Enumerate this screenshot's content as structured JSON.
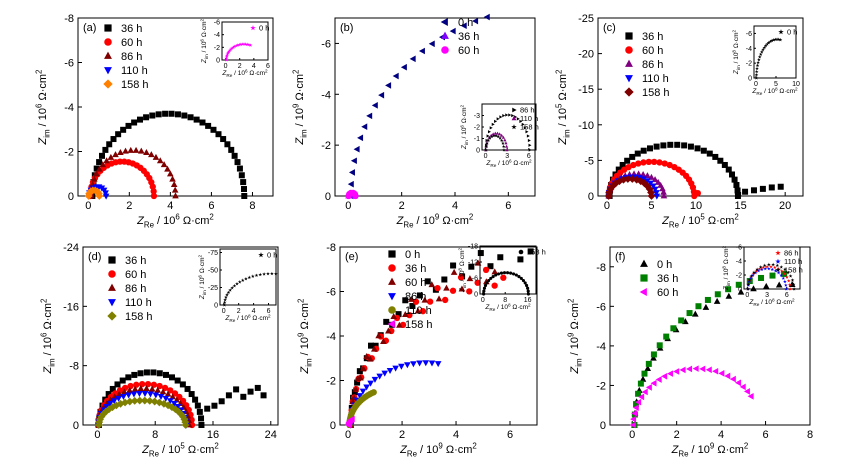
{
  "figure": {
    "panel_labels": [
      "(a)",
      "(b)",
      "(c)",
      "(d)",
      "(e)",
      "(f)"
    ]
  },
  "chart_data": [
    {
      "panel": "(a)",
      "type": "scatter",
      "xlim": [
        -0.5,
        9
      ],
      "ylim": [
        0,
        -8
      ],
      "xticks": [
        "0",
        "2",
        "4",
        "6",
        "8"
      ],
      "xtick_values": [
        0,
        2,
        4,
        6,
        8
      ],
      "yticks": [
        "0",
        "-2",
        "-4",
        "-6",
        "-8"
      ],
      "ytick_values": [
        0,
        -2,
        -4,
        -6,
        -8
      ],
      "x_sym": "Z",
      "x_sub": "Re",
      "x_unit": " / 10",
      "x_exp": "6",
      "x_unit2": " Ω·cm",
      "x_pow": "2",
      "y_sym": "Z",
      "y_sub": "im",
      "y_unit": " / 10",
      "y_exp": "6",
      "y_unit2": " Ω·cm",
      "y_pow": "2",
      "legend": "top-left",
      "series": [
        {
          "name": "36 h",
          "color": "#000000",
          "marker": "square",
          "shape": {
            "c": 3.9,
            "r": 3.7,
            "n": 38
          }
        },
        {
          "name": "60 h",
          "color": "#ff0000",
          "marker": "circle",
          "shape": {
            "c": 1.65,
            "r": 1.55,
            "n": 24
          }
        },
        {
          "name": "86 h",
          "color": "#800000",
          "marker": "triangle-up",
          "shape": {
            "c": 2.2,
            "r": 2.05,
            "n": 26
          }
        },
        {
          "name": "110 h",
          "color": "#0000ff",
          "marker": "triangle-down",
          "shape": {
            "c": 0.45,
            "r": 0.42,
            "n": 10
          }
        },
        {
          "name": "158 h",
          "color": "#ff8000",
          "marker": "diamond",
          "shape": {
            "c": 0.28,
            "r": 0.26,
            "n": 8
          }
        }
      ],
      "inset": {
        "xlim": [
          -0.5,
          6
        ],
        "ylim": [
          0,
          -6
        ],
        "xticks": [
          "0",
          "2",
          "4",
          "6"
        ],
        "xtick_values": [
          0,
          2,
          4,
          6
        ],
        "yticks": [
          "0",
          "-2",
          "-4",
          "-6"
        ],
        "ytick_values": [
          0,
          -2,
          -4,
          -6
        ],
        "x_sym": "Z",
        "x_sub": "Re",
        "x_unit": " / 10",
        "x_exp": "6",
        "x_unit2": " Ω·cm",
        "x_pow": "2",
        "y_sym": "Z",
        "y_sub": "im",
        "y_unit": " / 10",
        "y_exp": "6",
        "y_unit2": " Ω·cm",
        "y_pow": "2",
        "series": [
          {
            "name": "0 h",
            "color": "#ff00ff",
            "marker": "star",
            "shape": {
              "c": 2.6,
              "r": 2.5,
              "n": 22,
              "end": 0.62
            }
          }
        ]
      }
    },
    {
      "panel": "(b)",
      "type": "scatter",
      "xlim": [
        -0.5,
        7
      ],
      "ylim": [
        0,
        -7
      ],
      "xticks": [
        "0",
        "2",
        "4",
        "6"
      ],
      "xtick_values": [
        0,
        2,
        4,
        6
      ],
      "yticks": [
        "0",
        "-2",
        "-4",
        "-6"
      ],
      "ytick_values": [
        0,
        -2,
        -4,
        -6
      ],
      "x_sym": "Z",
      "x_sub": "Re",
      "x_unit": " / 10",
      "x_exp": "9",
      "x_unit2": " Ω·cm",
      "x_pow": "2",
      "y_sym": "Z",
      "y_sub": "im",
      "y_unit": " / 10",
      "y_exp": "9",
      "y_unit2": " Ω·cm",
      "y_pow": "2",
      "legend": "top-right",
      "series": [
        {
          "name": "0 h",
          "color": "#000080",
          "marker": "triangle-left",
          "shape": {
            "c": 7.5,
            "r": 7.4,
            "n": 30,
            "end": 0.58
          }
        },
        {
          "name": "36 h",
          "color": "#8000ff",
          "marker": "triangle-up",
          "shape": {
            "c": 0.12,
            "r": 0.11,
            "n": 6
          }
        },
        {
          "name": "60 h",
          "color": "#ff00ff",
          "marker": "circle",
          "shape": {
            "c": 0.14,
            "r": 0.13,
            "n": 6
          }
        }
      ],
      "inset": {
        "xlim": [
          -0.5,
          7
        ],
        "ylim": [
          0,
          -4
        ],
        "xticks": [
          "0",
          "3",
          "6"
        ],
        "xtick_values": [
          0,
          3,
          6
        ],
        "yticks": [
          "0",
          "-1",
          "-2",
          "-3"
        ],
        "ytick_values": [
          0,
          -1,
          -2,
          -3
        ],
        "x_sym": "Z",
        "x_sub": "Re",
        "x_unit": " / 10",
        "x_exp": "6",
        "x_unit2": " Ω·cm",
        "x_pow": "2",
        "y_sym": "Z",
        "y_sub": "im",
        "y_unit": " / 10",
        "y_exp": "6",
        "y_unit2": " Ω·cm",
        "y_pow": "2",
        "series": [
          {
            "name": "86 h",
            "color": "#000000",
            "marker": "triangle-right",
            "shape": {
              "c": 3.1,
              "r": 3.05,
              "n": 24
            }
          },
          {
            "name": "110 h",
            "color": "#800080",
            "marker": "triangle-up",
            "shape": {
              "c": 1.5,
              "r": 1.45,
              "n": 16
            }
          },
          {
            "name": "158 h",
            "color": "#000000",
            "marker": "star",
            "shape": {
              "c": 1.3,
              "r": 1.25,
              "n": 14
            }
          }
        ]
      }
    },
    {
      "panel": "(c)",
      "type": "scatter",
      "xlim": [
        -1,
        22
      ],
      "ylim": [
        0,
        -25
      ],
      "xticks": [
        "0",
        "5",
        "10",
        "15",
        "20"
      ],
      "xtick_values": [
        0,
        5,
        10,
        15,
        20
      ],
      "yticks": [
        "0",
        "-5",
        "-10",
        "-15",
        "-20",
        "-25"
      ],
      "ytick_values": [
        0,
        -5,
        -10,
        -15,
        -20,
        -25
      ],
      "x_sym": "Z",
      "x_sub": "Re",
      "x_unit": " / 10",
      "x_exp": "5",
      "x_unit2": " Ω·cm",
      "x_pow": "2",
      "y_sym": "Z",
      "y_sub": "im",
      "y_unit": " / 10",
      "y_exp": "5",
      "y_unit2": " Ω·cm",
      "y_pow": "2",
      "legend": "top-left",
      "series": [
        {
          "name": "36 h",
          "color": "#000000",
          "marker": "square",
          "shape": {
            "c": 7.5,
            "r": 7.2,
            "n": 30,
            "tail": [
              [
                15.5,
                -0.6
              ],
              [
                16.5,
                -0.8
              ],
              [
                17.5,
                -1.0
              ],
              [
                18.5,
                -1.2
              ],
              [
                19.5,
                -1.3
              ]
            ]
          }
        },
        {
          "name": "60 h",
          "color": "#ff0000",
          "marker": "circle",
          "shape": {
            "c": 5.0,
            "r": 4.8,
            "n": 26,
            "tail": [
              [
                10.2,
                -0.4
              ]
            ]
          }
        },
        {
          "name": "86 h",
          "color": "#800080",
          "marker": "triangle-up",
          "shape": {
            "c": 3.3,
            "r": 3.1,
            "n": 20
          }
        },
        {
          "name": "110 h",
          "color": "#0000ff",
          "marker": "triangle-down",
          "shape": {
            "c": 2.9,
            "r": 2.7,
            "n": 18
          }
        },
        {
          "name": "158 h",
          "color": "#800000",
          "marker": "diamond",
          "shape": {
            "c": 2.6,
            "r": 2.4,
            "n": 16
          }
        }
      ],
      "inset": {
        "xlim": [
          -0.5,
          10
        ],
        "ylim": [
          0,
          -7
        ],
        "xticks": [
          "0",
          "5",
          "10"
        ],
        "xtick_values": [
          0,
          5,
          10
        ],
        "yticks": [
          "0",
          "-2",
          "-4",
          "-6"
        ],
        "ytick_values": [
          0,
          -2,
          -4,
          -6
        ],
        "x_sym": "Z",
        "x_sub": "Re",
        "x_unit": " / 10",
        "x_exp": "8",
        "x_unit2": " Ω·cm",
        "x_pow": "2",
        "y_sym": "Z",
        "y_sub": "im",
        "y_unit": " / 10",
        "y_exp": "8",
        "y_unit2": " Ω·cm",
        "y_pow": "2",
        "series": [
          {
            "name": "0 h",
            "color": "#000000",
            "marker": "star",
            "shape": {
              "c": 5.3,
              "r": 5.2,
              "n": 22,
              "end": 0.55
            }
          }
        ]
      }
    },
    {
      "panel": "(d)",
      "type": "scatter",
      "xlim": [
        -2,
        25
      ],
      "ylim": [
        0,
        -24
      ],
      "xticks": [
        "0",
        "8",
        "16",
        "24"
      ],
      "xtick_values": [
        0,
        8,
        16,
        24
      ],
      "yticks": [
        "0",
        "-8",
        "-16",
        "-24"
      ],
      "ytick_values": [
        0,
        -8,
        -16,
        -24
      ],
      "x_sym": "Z",
      "x_sub": "Re",
      "x_unit": " / 10",
      "x_exp": "5",
      "x_unit2": " Ω·cm",
      "x_pow": "2",
      "y_sym": "Z",
      "y_sub": "im",
      "y_unit": " / 10",
      "y_exp": "6",
      "y_unit2": " Ω·cm",
      "y_pow": "2",
      "legend": "top-left",
      "series": [
        {
          "name": "36 h",
          "color": "#000000",
          "marker": "square",
          "shape": {
            "c": 7.3,
            "r": 7.1,
            "n": 26,
            "tail": [
              [
                15.2,
                -2.2
              ],
              [
                16.2,
                -2.6
              ],
              [
                17.2,
                -3.2
              ],
              [
                18.2,
                -4.0
              ],
              [
                19.2,
                -4.8
              ],
              [
                20.2,
                -3.8
              ],
              [
                21.2,
                -4.5
              ],
              [
                22.2,
                -5.0
              ],
              [
                23.0,
                -4.0
              ]
            ]
          }
        },
        {
          "name": "60 h",
          "color": "#ff0000",
          "marker": "circle",
          "shape": {
            "c": 6.6,
            "r": 6.5,
            "n": 26,
            "flat": 0.85
          }
        },
        {
          "name": "86 h",
          "color": "#800000",
          "marker": "triangle-up",
          "shape": {
            "c": 6.4,
            "r": 6.3,
            "n": 26,
            "flat": 0.78
          }
        },
        {
          "name": "110 h",
          "color": "#0000ff",
          "marker": "triangle-down",
          "shape": {
            "c": 6.2,
            "r": 6.1,
            "n": 26,
            "flat": 0.7
          }
        },
        {
          "name": "158 h",
          "color": "#808000",
          "marker": "diamond",
          "shape": {
            "c": 6.2,
            "r": 6.0,
            "n": 28,
            "flat": 0.55
          }
        }
      ],
      "inset": {
        "xlim": [
          -0.5,
          7
        ],
        "ylim": [
          0,
          -80
        ],
        "xticks": [
          "0",
          "2",
          "4",
          "6"
        ],
        "xtick_values": [
          0,
          2,
          4,
          6
        ],
        "yticks": [
          "0",
          "-25",
          "-50",
          "-75"
        ],
        "ytick_values": [
          0,
          -25,
          -50,
          -75
        ],
        "x_sym": "Z",
        "x_sub": "Re",
        "x_unit": " / 10",
        "x_exp": "8",
        "x_unit2": " Ω·cm",
        "x_pow": "2",
        "y_sym": "Z",
        "y_sub": "im",
        "y_unit": " / 10",
        "y_exp": "6",
        "y_unit2": " Ω·cm",
        "y_pow": "2",
        "series": [
          {
            "name": "0 h",
            "color": "#000000",
            "marker": "star",
            "shape": {
              "c": 6.5,
              "r": 6.4,
              "n": 22,
              "end": 0.55,
              "yscale": 7
            }
          }
        ]
      }
    },
    {
      "panel": "(e)",
      "type": "scatter",
      "xlim": [
        -0.3,
        7
      ],
      "ylim": [
        0,
        -8
      ],
      "xticks": [
        "0",
        "2",
        "4",
        "6"
      ],
      "xtick_values": [
        0,
        2,
        4,
        6
      ],
      "yticks": [
        "0",
        "-2",
        "-4",
        "-6",
        "-8"
      ],
      "ytick_values": [
        0,
        -2,
        -4,
        -6,
        -8
      ],
      "x_sym": "Z",
      "x_sub": "Re",
      "x_unit": " / 10",
      "x_exp": "9",
      "x_unit2": " Ω·cm",
      "x_pow": "2",
      "y_sym": "Z",
      "y_sub": "im",
      "y_unit": " / 10",
      "y_exp": "9",
      "y_unit2": " Ω·cm",
      "y_pow": "2",
      "legend": "top-left",
      "series": [
        {
          "name": "0 h",
          "color": "#000000",
          "marker": "square",
          "shape": {
            "c": 8.0,
            "r": 7.9,
            "n": 30,
            "end": 0.45,
            "scatter": 0.25
          }
        },
        {
          "name": "36 h",
          "color": "#ff0000",
          "marker": "circle",
          "shape": {
            "c": 6.8,
            "r": 6.7,
            "n": 30,
            "end": 0.45,
            "scatter": 0.3
          }
        },
        {
          "name": "60 h",
          "color": "#800000",
          "marker": "triangle-up",
          "shape": {
            "c": 7.2,
            "r": 7.1,
            "n": 30,
            "end": 0.42,
            "scatter": 0.35
          }
        },
        {
          "name": "86 h",
          "color": "#0000ff",
          "marker": "triangle-down",
          "shape": {
            "c": 2.9,
            "r": 2.8,
            "n": 22,
            "end": 0.55
          }
        },
        {
          "name": "110 h",
          "color": "#808000",
          "marker": "circle",
          "shape": {
            "c": 1.7,
            "r": 1.65,
            "n": 22,
            "end": 0.35
          }
        },
        {
          "name": "158 h",
          "color": "#ff00ff",
          "marker": "triangle-left",
          "shape": {
            "c": 0.35,
            "r": 0.33,
            "n": 8,
            "end": 0.3
          }
        }
      ],
      "inset": {
        "xlim": [
          -1,
          19
        ],
        "ylim": [
          0,
          -18
        ],
        "xticks": [
          "0",
          "8",
          "16"
        ],
        "xtick_values": [
          0,
          8,
          16
        ],
        "yticks": [
          "0",
          "-6",
          "-12",
          "-18"
        ],
        "ytick_values": [
          0,
          -6,
          -12,
          -18
        ],
        "x_sym": "Z",
        "x_sub": "Re",
        "x_unit": " / 10",
        "x_exp": "8",
        "x_unit2": " Ω·cm",
        "x_pow": "2",
        "y_sym": "Z",
        "y_sub": "im",
        "y_unit": " / 10",
        "y_exp": "8",
        "y_unit2": " Ω·cm",
        "y_pow": "2",
        "series": [
          {
            "name": "158 h",
            "color": "#000000",
            "marker": "circle",
            "shape": {
              "c": 8.3,
              "r": 8.0,
              "n": 24
            }
          }
        ]
      }
    },
    {
      "panel": "(f)",
      "type": "scatter",
      "xlim": [
        -1,
        8
      ],
      "ylim": [
        0,
        -9
      ],
      "xticks": [
        "0",
        "2",
        "4",
        "6",
        "8"
      ],
      "xtick_values": [
        0,
        2,
        4,
        6,
        8
      ],
      "yticks": [
        "0",
        "-2",
        "-4",
        "-6",
        "-8"
      ],
      "ytick_values": [
        0,
        -2,
        -4,
        -6,
        -8
      ],
      "x_sym": "Z",
      "x_sub": "Re",
      "x_unit": " / 10",
      "x_exp": "9",
      "x_unit2": " Ω·cm",
      "x_pow": "2",
      "y_sym": "Z",
      "y_sub": "im",
      "y_unit": " / 10",
      "y_exp": "9",
      "y_unit2": " Ω·cm",
      "y_pow": "2",
      "legend": "top-left",
      "series": [
        {
          "name": "0 h",
          "color": "#000000",
          "marker": "triangle-up",
          "shape": {
            "c": 7.2,
            "r": 7.1,
            "n": 20,
            "end": 0.5
          }
        },
        {
          "name": "36 h",
          "color": "#008000",
          "marker": "square",
          "shape": {
            "c": 7.8,
            "r": 7.7,
            "n": 22,
            "end": 0.46
          }
        },
        {
          "name": "60 h",
          "color": "#ff00ff",
          "marker": "triangle-left",
          "shape": {
            "c": 2.9,
            "r": 2.85,
            "n": 26,
            "end": 0.83
          }
        }
      ],
      "inset": {
        "xlim": [
          -0.5,
          8
        ],
        "ylim": [
          0,
          -6
        ],
        "xticks": [
          "0",
          "3",
          "6"
        ],
        "xtick_values": [
          0,
          3,
          6
        ],
        "yticks": [
          "0",
          "-2",
          "-4",
          "-6"
        ],
        "ytick_values": [
          0,
          -2,
          -4,
          -6
        ],
        "x_sym": "Z",
        "x_sub": "Re",
        "x_unit": " / 10",
        "x_exp": "8",
        "x_unit2": " Ω·cm",
        "x_pow": "2",
        "y_sym": "Z",
        "y_sub": "im",
        "y_unit": " / 10",
        "y_exp": "8",
        "y_unit2": " Ω·cm",
        "y_pow": "2",
        "series": [
          {
            "name": "86 h",
            "color": "#ff0000",
            "marker": "star",
            "shape": {
              "c": 3.3,
              "r": 3.2,
              "n": 18
            }
          },
          {
            "name": "110 h",
            "color": "#0000ff",
            "marker": "star",
            "shape": {
              "c": 3.0,
              "r": 2.9,
              "n": 18
            }
          },
          {
            "name": "158 h",
            "color": "#000000",
            "marker": "star",
            "shape": {
              "c": 3.6,
              "r": 3.5,
              "n": 18
            }
          }
        ]
      }
    }
  ]
}
